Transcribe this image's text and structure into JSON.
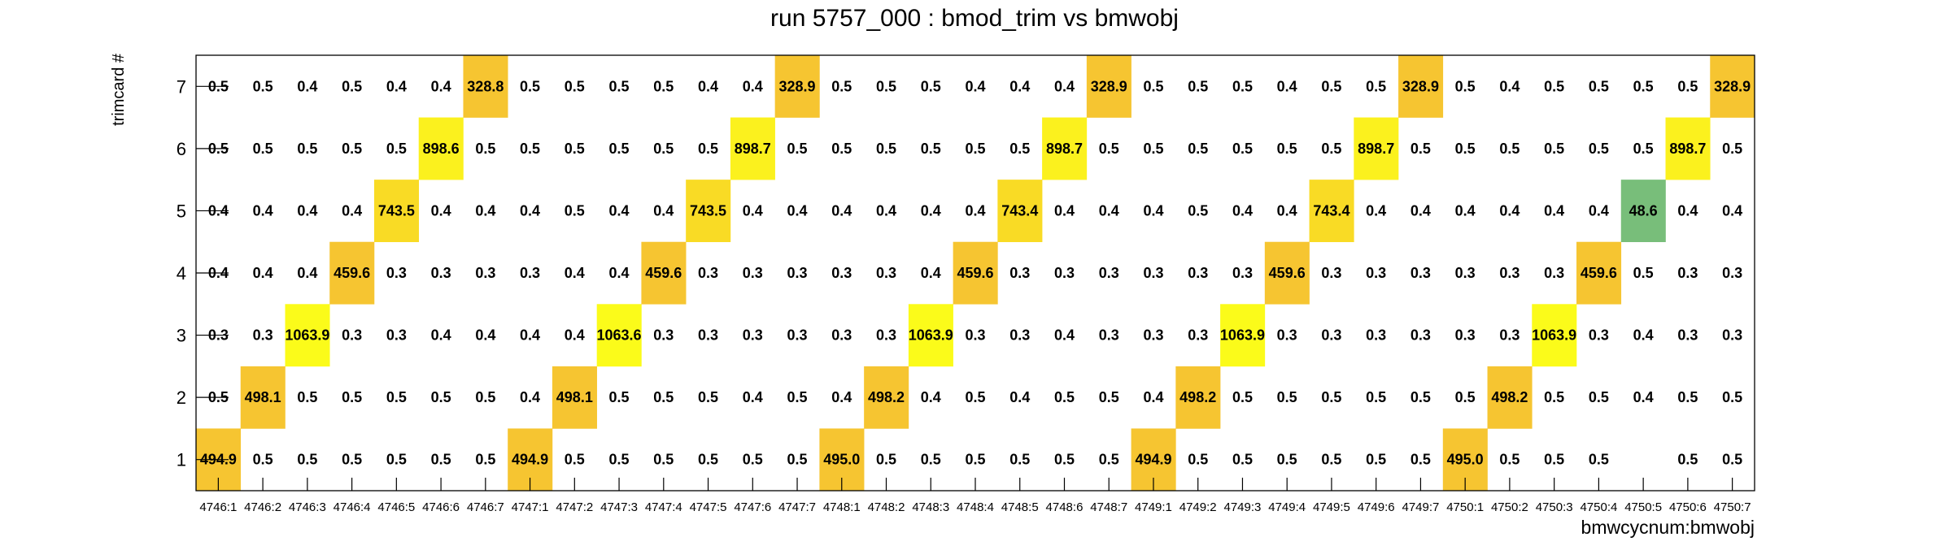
{
  "chart_data": {
    "type": "heatmap",
    "title": "run 5757_000 : bmod_trim vs bmwobj",
    "xlabel": "bmwcycnum:bmwobj",
    "ylabel": "trimcard #",
    "x_categories": [
      "4746:1",
      "4746:2",
      "4746:3",
      "4746:4",
      "4746:5",
      "4746:6",
      "4746:7",
      "4747:1",
      "4747:2",
      "4747:3",
      "4747:4",
      "4747:5",
      "4747:6",
      "4747:7",
      "4748:1",
      "4748:2",
      "4748:3",
      "4748:4",
      "4748:5",
      "4748:6",
      "4748:7",
      "4749:1",
      "4749:2",
      "4749:3",
      "4749:4",
      "4749:5",
      "4749:6",
      "4749:7",
      "4750:1",
      "4750:2",
      "4750:3",
      "4750:4",
      "4750:5",
      "4750:6",
      "4750:7"
    ],
    "y_categories": [
      "1",
      "2",
      "3",
      "4",
      "5",
      "6",
      "7"
    ],
    "rows": [
      {
        "y": "1",
        "values": [
          "494.9",
          "0.5",
          "0.5",
          "0.5",
          "0.5",
          "0.5",
          "0.5",
          "494.9",
          "0.5",
          "0.5",
          "0.5",
          "0.5",
          "0.5",
          "0.5",
          "495.0",
          "0.5",
          "0.5",
          "0.5",
          "0.5",
          "0.5",
          "0.5",
          "494.9",
          "0.5",
          "0.5",
          "0.5",
          "0.5",
          "0.5",
          "0.5",
          "495.0",
          "0.5",
          "0.5",
          "0.5",
          null,
          "0.5",
          "0.5"
        ]
      },
      {
        "y": "2",
        "values": [
          "0.5",
          "498.1",
          "0.5",
          "0.5",
          "0.5",
          "0.5",
          "0.5",
          "0.4",
          "498.1",
          "0.5",
          "0.5",
          "0.5",
          "0.4",
          "0.5",
          "0.4",
          "498.2",
          "0.4",
          "0.5",
          "0.4",
          "0.5",
          "0.5",
          "0.4",
          "498.2",
          "0.5",
          "0.5",
          "0.5",
          "0.5",
          "0.5",
          "0.5",
          "498.2",
          "0.5",
          "0.5",
          "0.4",
          "0.5",
          "0.5"
        ]
      },
      {
        "y": "3",
        "values": [
          "0.3",
          "0.3",
          "1063.9",
          "0.3",
          "0.3",
          "0.4",
          "0.4",
          "0.4",
          "0.4",
          "1063.6",
          "0.3",
          "0.3",
          "0.3",
          "0.3",
          "0.3",
          "0.3",
          "1063.9",
          "0.3",
          "0.3",
          "0.4",
          "0.3",
          "0.3",
          "0.3",
          "1063.9",
          "0.3",
          "0.3",
          "0.3",
          "0.3",
          "0.3",
          "0.3",
          "1063.9",
          "0.3",
          "0.4",
          "0.3",
          "0.3"
        ]
      },
      {
        "y": "4",
        "values": [
          "0.4",
          "0.4",
          "0.4",
          "459.6",
          "0.3",
          "0.3",
          "0.3",
          "0.3",
          "0.4",
          "0.4",
          "459.6",
          "0.3",
          "0.3",
          "0.3",
          "0.3",
          "0.3",
          "0.4",
          "459.6",
          "0.3",
          "0.3",
          "0.3",
          "0.3",
          "0.3",
          "0.3",
          "459.6",
          "0.3",
          "0.3",
          "0.3",
          "0.3",
          "0.3",
          "0.3",
          "459.6",
          "0.5",
          "0.3",
          "0.3"
        ]
      },
      {
        "y": "5",
        "values": [
          "0.4",
          "0.4",
          "0.4",
          "0.4",
          "743.5",
          "0.4",
          "0.4",
          "0.4",
          "0.5",
          "0.4",
          "0.4",
          "743.5",
          "0.4",
          "0.4",
          "0.4",
          "0.4",
          "0.4",
          "0.4",
          "743.4",
          "0.4",
          "0.4",
          "0.4",
          "0.5",
          "0.4",
          "0.4",
          "743.4",
          "0.4",
          "0.4",
          "0.4",
          "0.4",
          "0.4",
          "0.4",
          "48.6",
          "0.4",
          "0.4"
        ]
      },
      {
        "y": "6",
        "values": [
          "0.5",
          "0.5",
          "0.5",
          "0.5",
          "0.5",
          "898.6",
          "0.5",
          "0.5",
          "0.5",
          "0.5",
          "0.5",
          "0.5",
          "898.7",
          "0.5",
          "0.5",
          "0.5",
          "0.5",
          "0.5",
          "0.5",
          "898.7",
          "0.5",
          "0.5",
          "0.5",
          "0.5",
          "0.5",
          "0.5",
          "898.7",
          "0.5",
          "0.5",
          "0.5",
          "0.5",
          "0.5",
          "0.5",
          "898.7",
          "0.5"
        ]
      },
      {
        "y": "7",
        "values": [
          "0.5",
          "0.5",
          "0.4",
          "0.5",
          "0.4",
          "0.4",
          "328.8",
          "0.5",
          "0.5",
          "0.5",
          "0.5",
          "0.4",
          "0.4",
          "328.9",
          "0.5",
          "0.5",
          "0.5",
          "0.4",
          "0.4",
          "0.4",
          "328.9",
          "0.5",
          "0.5",
          "0.5",
          "0.4",
          "0.5",
          "0.5",
          "328.9",
          "0.5",
          "0.4",
          "0.5",
          "0.5",
          "0.5",
          "0.5",
          "328.9"
        ]
      }
    ],
    "highlight_colors": {
      "328": "#f6c531",
      "494": "#f6c531",
      "495": "#f6c531",
      "498": "#f6c531",
      "459": "#f6c531",
      "743": "#f9db25",
      "898": "#fbf11e",
      "1063": "#fbfb1a",
      "48": "#78be7a"
    },
    "grid": false,
    "legend": "none"
  }
}
